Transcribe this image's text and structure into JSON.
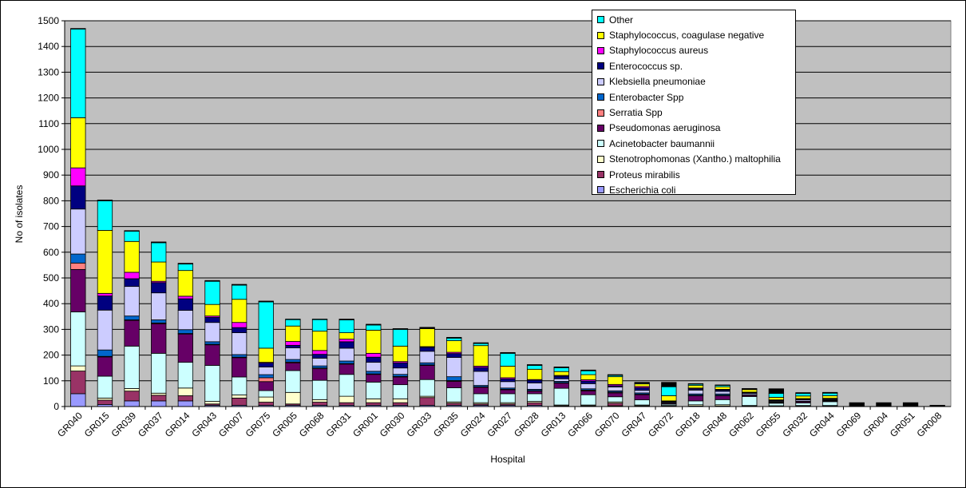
{
  "chart_data": {
    "type": "bar",
    "stacked": true,
    "title": "",
    "xlabel": "Hospital",
    "ylabel": "No of isolates",
    "ylim": [
      0,
      1500
    ],
    "yticks": [
      0,
      100,
      200,
      300,
      400,
      500,
      600,
      700,
      800,
      900,
      1000,
      1100,
      1200,
      1300,
      1400,
      1500
    ],
    "grid": true,
    "plot_background": "#c0c0c0",
    "legend_position": "top-right",
    "categories": [
      "GR040",
      "GR015",
      "GR039",
      "GR037",
      "GR014",
      "GR043",
      "GR007",
      "GR075",
      "GR005",
      "GR068",
      "GR031",
      "GR001",
      "GR030",
      "GR033",
      "GR035",
      "GR024",
      "GR027",
      "GR028",
      "GR013",
      "GR066",
      "GR070",
      "GR047",
      "GR072",
      "GR018",
      "GR048",
      "GR062",
      "GR055",
      "GR032",
      "GR044",
      "GR069",
      "GR004",
      "GR051",
      "GR008"
    ],
    "series": [
      {
        "name": "Escherichia coli",
        "color": "#9999ff",
        "values": [
          50,
          8,
          22,
          22,
          22,
          5,
          5,
          5,
          5,
          5,
          5,
          5,
          5,
          5,
          5,
          5,
          5,
          5,
          3,
          3,
          3,
          3,
          2,
          2,
          2,
          2,
          0,
          2,
          2,
          0,
          0,
          0,
          0
        ]
      },
      {
        "name": "Proteus mirabilis",
        "color": "#993366",
        "values": [
          88,
          17,
          38,
          22,
          20,
          5,
          28,
          12,
          5,
          12,
          10,
          10,
          10,
          30,
          8,
          5,
          5,
          10,
          0,
          0,
          10,
          0,
          0,
          0,
          0,
          0,
          0,
          0,
          0,
          0,
          0,
          0,
          0
        ]
      },
      {
        "name": "Stenotrophomonas (Xantho.) maltophilia",
        "color": "#ffffcc",
        "values": [
          20,
          8,
          10,
          8,
          30,
          10,
          12,
          20,
          45,
          10,
          25,
          15,
          15,
          5,
          5,
          5,
          5,
          5,
          3,
          3,
          5,
          3,
          2,
          5,
          5,
          2,
          3,
          2,
          2,
          0,
          0,
          0,
          0
        ]
      },
      {
        "name": "Acinetobacter baumannii",
        "color": "#ccffff",
        "values": [
          210,
          85,
          165,
          155,
          100,
          140,
          70,
          25,
          85,
          75,
          85,
          65,
          55,
          65,
          55,
          35,
          35,
          30,
          65,
          40,
          20,
          20,
          5,
          15,
          20,
          35,
          10,
          10,
          15,
          0,
          0,
          0,
          0
        ]
      },
      {
        "name": "Pseudomonas aeruginosa",
        "color": "#660066",
        "values": [
          165,
          75,
          100,
          115,
          110,
          80,
          75,
          35,
          30,
          45,
          40,
          30,
          30,
          55,
          25,
          25,
          15,
          10,
          20,
          15,
          15,
          20,
          3,
          20,
          15,
          5,
          3,
          5,
          3,
          0,
          0,
          0,
          0
        ]
      },
      {
        "name": "Serratia Spp",
        "color": "#ff8080",
        "values": [
          25,
          2,
          2,
          3,
          2,
          2,
          2,
          15,
          3,
          3,
          2,
          2,
          2,
          2,
          3,
          2,
          2,
          2,
          2,
          3,
          3,
          2,
          0,
          2,
          2,
          0,
          0,
          0,
          0,
          0,
          0,
          0,
          0
        ]
      },
      {
        "name": "Enterobacter Spp",
        "color": "#0066cc",
        "values": [
          35,
          25,
          15,
          12,
          15,
          10,
          10,
          12,
          10,
          8,
          10,
          10,
          8,
          8,
          15,
          5,
          5,
          5,
          5,
          5,
          5,
          5,
          2,
          5,
          5,
          2,
          2,
          2,
          2,
          0,
          0,
          0,
          0
        ]
      },
      {
        "name": "Klebsiella pneumoniae",
        "color": "#ccccff",
        "values": [
          175,
          155,
          115,
          105,
          75,
          75,
          85,
          30,
          45,
          30,
          50,
          35,
          25,
          45,
          75,
          55,
          25,
          25,
          10,
          20,
          15,
          10,
          3,
          15,
          10,
          5,
          3,
          5,
          3,
          0,
          0,
          0,
          0
        ]
      },
      {
        "name": "Enterococcus sp.",
        "color": "#000080",
        "values": [
          90,
          55,
          30,
          40,
          45,
          20,
          20,
          15,
          10,
          15,
          25,
          20,
          20,
          15,
          15,
          15,
          10,
          10,
          10,
          10,
          5,
          10,
          3,
          5,
          5,
          3,
          3,
          3,
          3,
          0,
          0,
          0,
          0
        ]
      },
      {
        "name": "Staphylococcus aureus",
        "color": "#ff00ff",
        "values": [
          70,
          10,
          25,
          5,
          10,
          5,
          20,
          3,
          15,
          15,
          10,
          15,
          5,
          3,
          5,
          5,
          5,
          3,
          3,
          5,
          5,
          5,
          2,
          3,
          3,
          2,
          2,
          2,
          2,
          0,
          0,
          0,
          0
        ]
      },
      {
        "name": "Staphylococcus, coagulase negative",
        "color": "#ffff00",
        "values": [
          195,
          245,
          120,
          75,
          100,
          45,
          90,
          55,
          60,
          75,
          25,
          90,
          60,
          70,
          45,
          80,
          45,
          40,
          15,
          20,
          30,
          10,
          20,
          10,
          10,
          10,
          10,
          10,
          10,
          0,
          0,
          0,
          0
        ]
      },
      {
        "name": "Other",
        "color": "#00ffff",
        "values": [
          345,
          115,
          40,
          75,
          25,
          90,
          55,
          180,
          25,
          45,
          50,
          20,
          65,
          2,
          10,
          8,
          50,
          15,
          15,
          15,
          5,
          3,
          35,
          5,
          5,
          2,
          15,
          10,
          10,
          0,
          0,
          0,
          0
        ]
      },
      {
        "name": "",
        "color": "#000000",
        "values": [
          2,
          3,
          2,
          3,
          3,
          3,
          3,
          3,
          2,
          2,
          3,
          3,
          3,
          3,
          3,
          3,
          3,
          3,
          3,
          3,
          3,
          3,
          17,
          2,
          2,
          2,
          18,
          3,
          3,
          15,
          15,
          15,
          5
        ]
      }
    ]
  }
}
